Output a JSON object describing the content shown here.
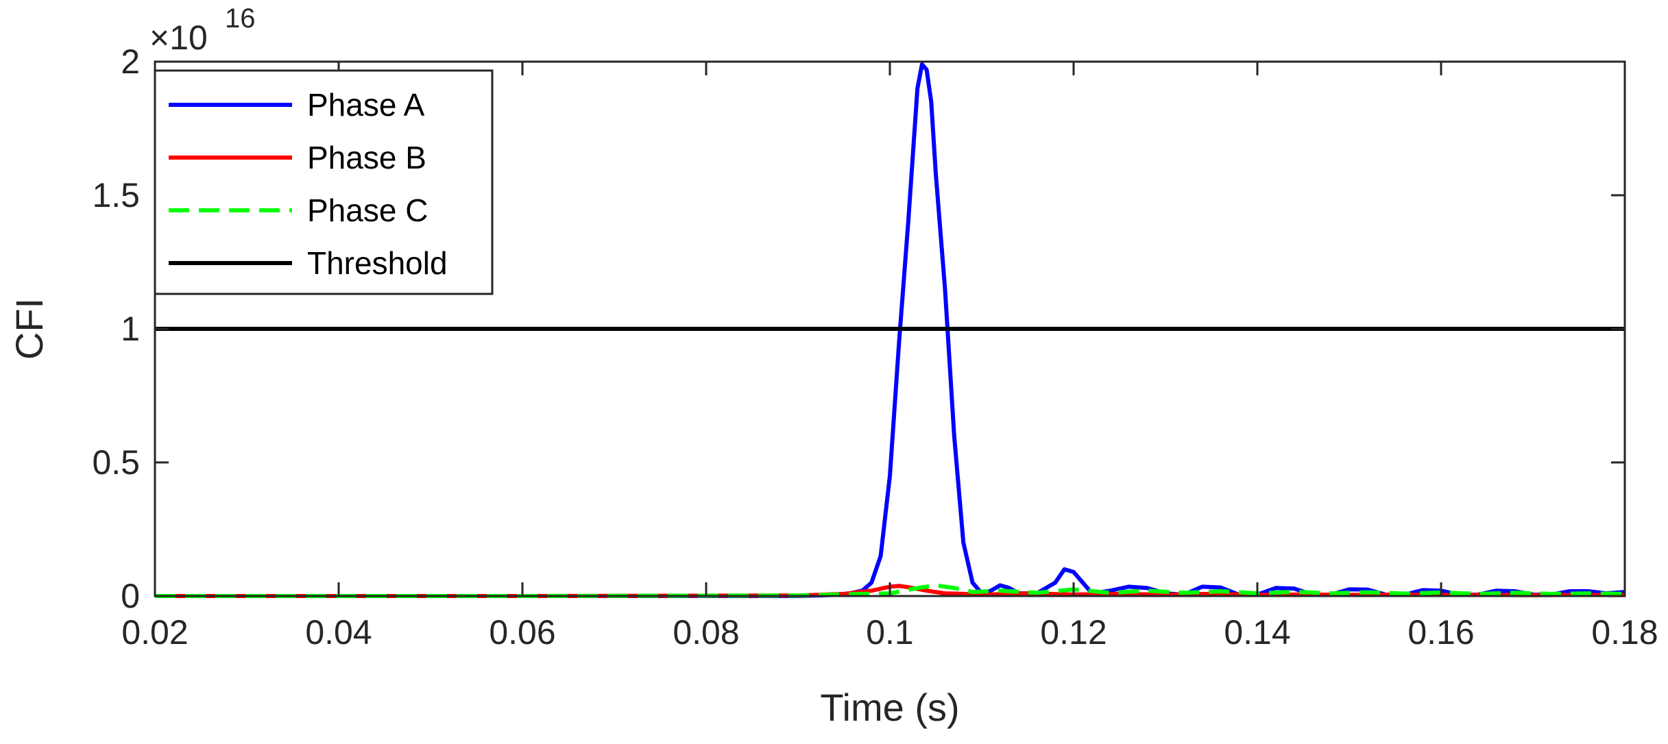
{
  "chart_data": {
    "type": "line",
    "xlabel": "Time (s)",
    "ylabel": "CFI",
    "exponent_label": "×10",
    "exponent_power": "16",
    "xlim": [
      0.02,
      0.18
    ],
    "ylim": [
      0,
      2
    ],
    "xticks": [
      0.02,
      0.04,
      0.06,
      0.08,
      0.1,
      0.12,
      0.14,
      0.16,
      0.18
    ],
    "xtick_labels": [
      "0.02",
      "0.04",
      "0.06",
      "0.08",
      "0.1",
      "0.12",
      "0.14",
      "0.16",
      "0.18"
    ],
    "yticks": [
      0,
      0.5,
      1,
      1.5,
      2
    ],
    "ytick_labels": [
      "0",
      "0.5",
      "1",
      "1.5",
      "2"
    ],
    "grid": false,
    "legend_position": "top-left",
    "series": [
      {
        "name": "Phase A",
        "color": "#0000ff",
        "dash": "solid",
        "x": [
          0.02,
          0.06,
          0.09,
          0.095,
          0.097,
          0.098,
          0.099,
          0.1,
          0.101,
          0.102,
          0.103,
          0.1035,
          0.104,
          0.1045,
          0.105,
          0.106,
          0.107,
          0.108,
          0.109,
          0.11,
          0.111,
          0.112,
          0.113,
          0.114,
          0.116,
          0.118,
          0.119,
          0.12,
          0.121,
          0.122,
          0.124,
          0.126,
          0.128,
          0.13,
          0.132,
          0.134,
          0.136,
          0.138,
          0.14,
          0.142,
          0.144,
          0.146,
          0.148,
          0.15,
          0.152,
          0.154,
          0.156,
          0.158,
          0.16,
          0.162,
          0.164,
          0.166,
          0.168,
          0.17,
          0.172,
          0.174,
          0.176,
          0.178,
          0.18
        ],
        "y": [
          0.0,
          0.0,
          0.0,
          0.005,
          0.02,
          0.05,
          0.15,
          0.45,
          0.95,
          1.4,
          1.9,
          1.99,
          1.97,
          1.85,
          1.58,
          1.15,
          0.6,
          0.2,
          0.05,
          0.01,
          0.02,
          0.04,
          0.03,
          0.01,
          0.01,
          0.05,
          0.1,
          0.09,
          0.05,
          0.01,
          0.02,
          0.035,
          0.03,
          0.01,
          0.005,
          0.035,
          0.032,
          0.005,
          0.005,
          0.03,
          0.028,
          0.005,
          0.005,
          0.025,
          0.024,
          0.005,
          0.005,
          0.022,
          0.02,
          0.005,
          0.005,
          0.02,
          0.018,
          0.005,
          0.005,
          0.018,
          0.018,
          0.01,
          0.015
        ]
      },
      {
        "name": "Phase B",
        "color": "#ff0000",
        "dash": "solid",
        "x": [
          0.02,
          0.06,
          0.09,
          0.095,
          0.098,
          0.1,
          0.101,
          0.102,
          0.104,
          0.106,
          0.108,
          0.11,
          0.115,
          0.12,
          0.125,
          0.13,
          0.135,
          0.14,
          0.145,
          0.15,
          0.155,
          0.16,
          0.165,
          0.17,
          0.175,
          0.18
        ],
        "y": [
          0.0,
          0.0,
          0.002,
          0.008,
          0.02,
          0.035,
          0.038,
          0.033,
          0.02,
          0.01,
          0.008,
          0.005,
          0.01,
          0.006,
          0.008,
          0.005,
          0.008,
          0.004,
          0.006,
          0.004,
          0.005,
          0.004,
          0.004,
          0.003,
          0.004,
          0.003
        ]
      },
      {
        "name": "Phase C",
        "color": "#00ff00",
        "dash": "dashed",
        "x": [
          0.02,
          0.06,
          0.09,
          0.1,
          0.103,
          0.105,
          0.107,
          0.109,
          0.112,
          0.116,
          0.12,
          0.124,
          0.128,
          0.132,
          0.136,
          0.14,
          0.144,
          0.148,
          0.152,
          0.156,
          0.16,
          0.164,
          0.168,
          0.172,
          0.176,
          0.18
        ],
        "y": [
          0.0,
          0.0,
          0.002,
          0.01,
          0.03,
          0.04,
          0.03,
          0.015,
          0.02,
          0.012,
          0.025,
          0.012,
          0.02,
          0.012,
          0.018,
          0.01,
          0.016,
          0.01,
          0.014,
          0.009,
          0.013,
          0.008,
          0.012,
          0.008,
          0.01,
          0.008
        ]
      },
      {
        "name": "Threshold",
        "color": "#000000",
        "dash": "solid",
        "x": [
          0.02,
          0.18
        ],
        "y": [
          1,
          1
        ]
      }
    ]
  }
}
